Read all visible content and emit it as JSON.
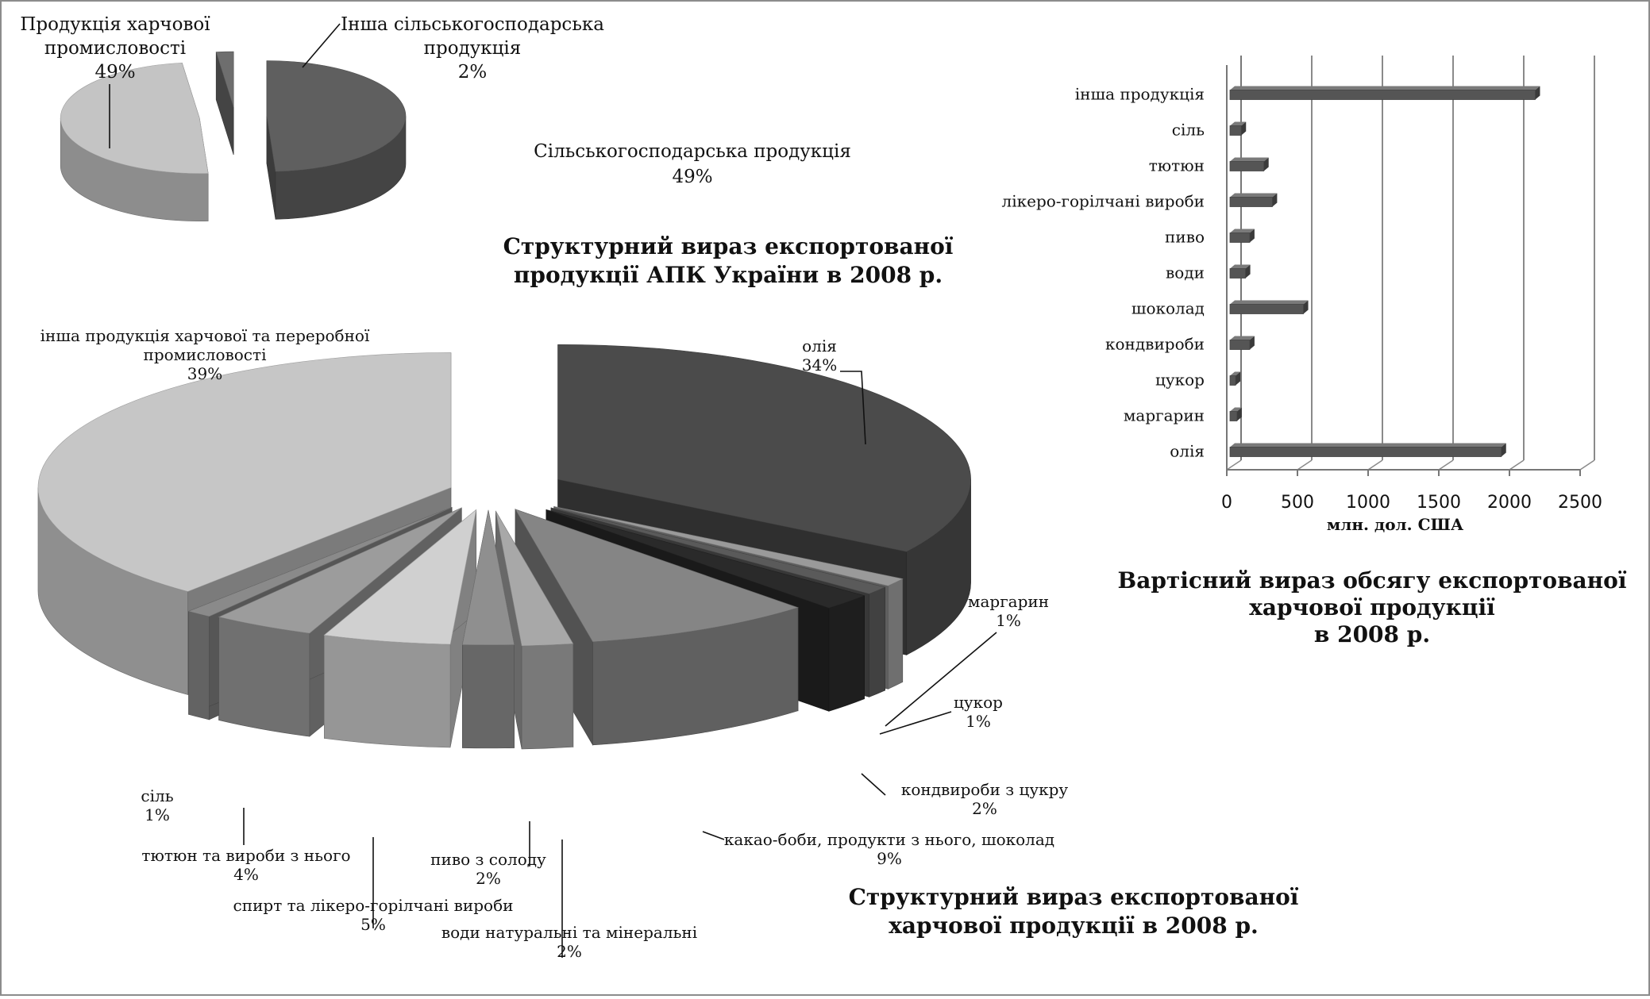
{
  "chart_data": [
    {
      "type": "pie",
      "title": "Структурний вираз експортованої продукції АПК України в 2008 р.",
      "title_lines": [
        "Структурний вираз експортованої",
        "продукції АПК України в 2008 р."
      ],
      "slices": [
        {
          "label": "Сільськогосподарська продукція",
          "label_lines": [
            "Сільськогосподарська продукція"
          ],
          "value": 49,
          "value_label": "49%",
          "color": "#5f5f5f"
        },
        {
          "label": "Продукція харчової промисловості",
          "label_lines": [
            "Продукція харчової",
            "промисловості"
          ],
          "value": 49,
          "value_label": "49%",
          "color": "#c4c4c4"
        },
        {
          "label": "Інша сільськогосподарська продукція",
          "label_lines": [
            "Інша сільськогосподарська",
            "продукція"
          ],
          "value": 2,
          "value_label": "2%",
          "color": "#6e6e6e"
        }
      ]
    },
    {
      "type": "pie",
      "title": "Структурний вираз експортованої харчової продукції в 2008 р.",
      "title_lines": [
        "Структурний вираз експортованої",
        "харчової продукції в 2008 р."
      ],
      "slices": [
        {
          "label": "олія",
          "label_lines": [
            "олія"
          ],
          "value": 34,
          "value_label": "34%",
          "color": "#4b4b4b"
        },
        {
          "label": "маргарин",
          "label_lines": [
            "маргарин"
          ],
          "value": 1,
          "value_label": "1%",
          "color": "#9a9a9a"
        },
        {
          "label": "цукор",
          "label_lines": [
            "цукор"
          ],
          "value": 1,
          "value_label": "1%",
          "color": "#5a5a5a"
        },
        {
          "label": "кондвироби з цукру",
          "label_lines": [
            "кондвироби з цукру"
          ],
          "value": 2,
          "value_label": "2%",
          "color": "#2a2a2a"
        },
        {
          "label": "какао-боби, продукти з нього, шоколад",
          "label_lines": [
            "какао-боби, продукти з нього, шоколад"
          ],
          "value": 9,
          "value_label": "9%",
          "color": "#858585"
        },
        {
          "label": "води натуральні та мінеральні",
          "label_lines": [
            "води натуральні та мінеральні"
          ],
          "value": 2,
          "value_label": "2%",
          "color": "#a8a8a8"
        },
        {
          "label": "пиво з солоду",
          "label_lines": [
            "пиво з солоду"
          ],
          "value": 2,
          "value_label": "2%",
          "color": "#8f8f8f"
        },
        {
          "label": "спирт та лікеро-горілчані вироби",
          "label_lines": [
            "спирт та лікеро-горілчані вироби"
          ],
          "value": 5,
          "value_label": "5%",
          "color": "#d0d0d0"
        },
        {
          "label": "тютюн та вироби з нього",
          "label_lines": [
            "тютюн та вироби з нього"
          ],
          "value": 4,
          "value_label": "4%",
          "color": "#9c9c9c"
        },
        {
          "label": "сіль",
          "label_lines": [
            "сіль"
          ],
          "value": 1,
          "value_label": "1%",
          "color": "#8a8a8a"
        },
        {
          "label": "інша продукція харчової та переробної промисловості",
          "label_lines": [
            "інша продукція харчової та переробної",
            "промисловості"
          ],
          "value": 39,
          "value_label": "39%",
          "color": "#c6c6c6"
        }
      ]
    },
    {
      "type": "bar",
      "orientation": "horizontal",
      "title": "Вартісний вираз обсягу експортованої харчової продукції в 2008 р.",
      "title_lines": [
        "Вартісний вираз обсягу експортованої",
        "харчової продукції",
        "в 2008 р."
      ],
      "categories": [
        "олія",
        "маргарин",
        "цукор",
        "кондвироби",
        "шоколад",
        "води",
        "пиво",
        "лікеро-горілчані вироби",
        "тютюн",
        "сіль",
        "інша продукція"
      ],
      "values": [
        1920,
        50,
        40,
        140,
        520,
        110,
        140,
        300,
        240,
        80,
        2160
      ],
      "xlabel": "млн. дол. США",
      "xlim": [
        0,
        2500
      ],
      "xticks": [
        "0",
        "500",
        "1000",
        "1500",
        "2000",
        "2500"
      ],
      "grid": true,
      "color": "#555555"
    }
  ]
}
